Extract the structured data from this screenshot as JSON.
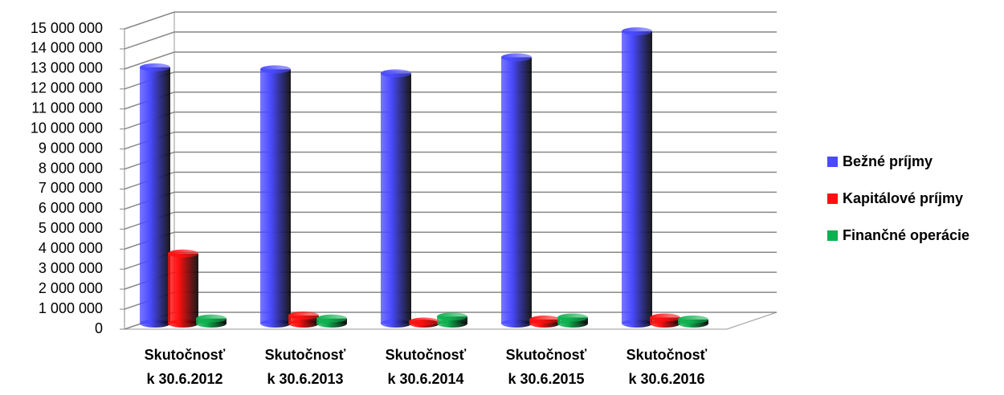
{
  "chart_data": {
    "type": "bar3d",
    "categories": [
      [
        "Skutočnosť",
        "k 30.6.2012"
      ],
      [
        "Skutočnosť",
        "k 30.6.2013"
      ],
      [
        "Skutočnosť",
        "k 30.6.2014"
      ],
      [
        "Skutočnosť",
        "k 30.6.2015"
      ],
      [
        "Skutočnosť",
        "k 30.6.2016"
      ]
    ],
    "series": [
      {
        "name": "Bežné príjmy",
        "color": "#4a4aff",
        "values": [
          12800000,
          12700000,
          12500000,
          13300000,
          14600000
        ]
      },
      {
        "name": "Kapitálové príjmy",
        "color": "#ff1010",
        "values": [
          3500000,
          400000,
          100000,
          200000,
          300000
        ]
      },
      {
        "name": "Finančné operácie",
        "color": "#10b050",
        "values": [
          250000,
          250000,
          350000,
          300000,
          200000
        ]
      }
    ],
    "ylim": [
      0,
      15000000
    ],
    "yticks": [
      0,
      {
        "value": 1000000,
        "label": "1 000 000"
      },
      {
        "value": 2000000,
        "label": "2 000 000"
      },
      {
        "value": 3000000,
        "label": "3 000 000"
      },
      {
        "value": 4000000,
        "label": "4 000 000"
      },
      {
        "value": 5000000,
        "label": "5 000 000"
      },
      {
        "value": 6000000,
        "label": "6 000 000"
      },
      {
        "value": 7000000,
        "label": "7 000 000"
      },
      {
        "value": 8000000,
        "label": "8 000 000"
      },
      {
        "value": 9000000,
        "label": "9 000 000"
      },
      {
        "value": 10000000,
        "label": "10 000 000"
      },
      {
        "value": 11000000,
        "label": "11 000 000"
      },
      {
        "value": 12000000,
        "label": "12 000 000"
      },
      {
        "value": 13000000,
        "label": "13 000 000"
      },
      {
        "value": 14000000,
        "label": "14 000 000"
      },
      {
        "value": 15000000,
        "label": "15 000 000"
      }
    ],
    "grid": true,
    "legend": "right"
  }
}
